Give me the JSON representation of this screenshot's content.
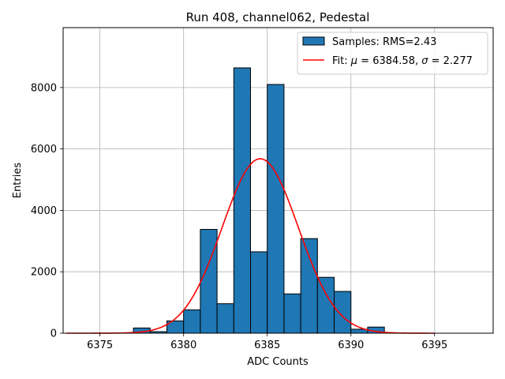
{
  "chart_data": {
    "type": "bar",
    "title": "Run 408, channel062, Pedestal",
    "xlabel": "ADC Counts",
    "ylabel": "Entries",
    "xlim": [
      6372.8,
      6398.5
    ],
    "ylim": [
      0,
      9950
    ],
    "grid": true,
    "x_ticks": [
      6375,
      6380,
      6385,
      6390,
      6395
    ],
    "y_ticks": [
      0,
      2000,
      4000,
      6000,
      8000
    ],
    "histogram": {
      "name": "Samples: RMS=2.43",
      "color": "#1f77b4",
      "edge_color": "#000000",
      "bin_edges": [
        6377,
        6378,
        6379,
        6380,
        6381,
        6382,
        6383,
        6384,
        6385,
        6386,
        6387,
        6388,
        6389,
        6390,
        6391,
        6392
      ],
      "counts": [
        170,
        50,
        400,
        760,
        3380,
        960,
        8640,
        2650,
        8100,
        1280,
        3080,
        1820,
        1360,
        130,
        200
      ]
    },
    "fit": {
      "name": "Fit: μ = 6384.58, σ = 2.277",
      "label_parts": {
        "prefix": "Fit: ",
        "mu_symbol": "μ",
        "mu_text": " = 6384.58, ",
        "sigma_symbol": "σ",
        "sigma_text": " = 2.277"
      },
      "color": "#ff0000",
      "mu": 6384.58,
      "sigma": 2.277,
      "amplitude": 5680,
      "x_range": [
        6373,
        6395
      ]
    },
    "legend_position": "top-right"
  }
}
